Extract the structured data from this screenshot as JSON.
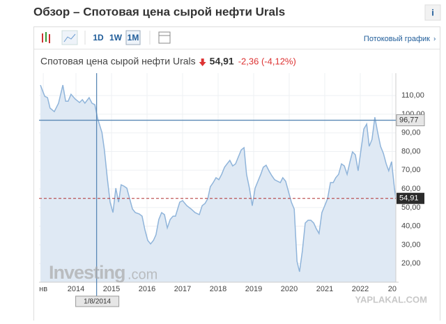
{
  "header": {
    "title": "Обзор – Спотовая цена сырой нефти Urals",
    "info_icon": "i"
  },
  "toolbar": {
    "intervals": [
      "1D",
      "1W",
      "1M"
    ],
    "active_interval": "1M",
    "stream_link": "Потоковый график"
  },
  "quote": {
    "name": "Спотовая цена сырой нефти Urals",
    "price": "54,91",
    "change": "-2,36 (-4,12%)"
  },
  "watermarks": {
    "brand": "Investing",
    "brand_suffix": ".com",
    "site": "YAPLAKAL.COM"
  },
  "chart_data": {
    "type": "area",
    "color": "#8fb4da",
    "fill": "#dfe9f4",
    "grid": true,
    "xlim": [
      2012.96,
      2023.0
    ],
    "ylim": [
      10,
      122
    ],
    "xticks": [
      {
        "value": 2013.08,
        "label": "нв"
      },
      2014,
      2015,
      2016,
      2017,
      2018,
      2019,
      2020,
      2021,
      2022,
      {
        "value": 2022.9,
        "label": "20"
      }
    ],
    "yticks": [
      {
        "value": 20,
        "label": "20,00"
      },
      {
        "value": 30,
        "label": "30,00"
      },
      {
        "value": 40,
        "label": "40,00"
      },
      {
        "value": 50,
        "label": "50,00"
      },
      {
        "value": 60,
        "label": "60,00"
      },
      {
        "value": 70,
        "label": "70,00"
      },
      {
        "value": 80,
        "label": "80,00"
      },
      {
        "value": 90,
        "label": "90,00"
      },
      {
        "value": 100,
        "label": "100,00"
      },
      {
        "value": 110,
        "label": "110,00"
      }
    ],
    "crosshair_x": {
      "value": 2014.58,
      "label": "1/8/2014"
    },
    "crosshair_y": {
      "value": 96.77,
      "label": "96,77"
    },
    "last_price_line": {
      "value": 54.91,
      "label": "54,91"
    },
    "x": [
      2013.0,
      2013.12,
      2013.2,
      2013.27,
      2013.39,
      2013.51,
      2013.63,
      2013.71,
      2013.78,
      2013.86,
      2013.98,
      2014.1,
      2014.18,
      2014.25,
      2014.37,
      2014.45,
      2014.53,
      2014.61,
      2014.73,
      2014.8,
      2014.88,
      2014.96,
      2015.04,
      2015.12,
      2015.2,
      2015.27,
      2015.35,
      2015.43,
      2015.51,
      2015.59,
      2015.67,
      2015.78,
      2015.86,
      2015.94,
      2016.02,
      2016.1,
      2016.18,
      2016.25,
      2016.33,
      2016.41,
      2016.49,
      2016.57,
      2016.65,
      2016.73,
      2016.8,
      2016.92,
      2017.0,
      2017.12,
      2017.24,
      2017.35,
      2017.47,
      2017.55,
      2017.63,
      2017.71,
      2017.78,
      2017.86,
      2017.94,
      2018.02,
      2018.1,
      2018.18,
      2018.25,
      2018.33,
      2018.41,
      2018.49,
      2018.57,
      2018.65,
      2018.73,
      2018.8,
      2018.88,
      2018.96,
      2019.04,
      2019.12,
      2019.2,
      2019.27,
      2019.35,
      2019.43,
      2019.51,
      2019.59,
      2019.67,
      2019.75,
      2019.82,
      2019.9,
      2019.98,
      2020.06,
      2020.14,
      2020.22,
      2020.29,
      2020.37,
      2020.45,
      2020.53,
      2020.61,
      2020.69,
      2020.76,
      2020.84,
      2020.92,
      2021.0,
      2021.08,
      2021.16,
      2021.24,
      2021.31,
      2021.39,
      2021.47,
      2021.55,
      2021.63,
      2021.71,
      2021.78,
      2021.86,
      2021.94,
      2022.02,
      2022.1,
      2022.18,
      2022.25,
      2022.33,
      2022.41,
      2022.49,
      2022.57,
      2022.65,
      2022.73,
      2022.8,
      2022.88,
      2022.96,
      2023.0
    ],
    "values": [
      115.6,
      109.6,
      108.9,
      103.3,
      101.4,
      105.9,
      115.6,
      107,
      107,
      110.7,
      108.1,
      106.3,
      107.8,
      105.9,
      108.9,
      105.9,
      105.1,
      97.7,
      90.2,
      80.9,
      66,
      52.9,
      47.3,
      60.4,
      52.9,
      62.2,
      61.5,
      60.4,
      54.8,
      49.2,
      47.3,
      46.6,
      45.4,
      38,
      32.4,
      30.5,
      32.4,
      35.4,
      43.6,
      47.3,
      46.2,
      39.1,
      43.6,
      45.4,
      45.4,
      52.9,
      53.7,
      51,
      49.2,
      47.3,
      46.2,
      51,
      52.2,
      54.8,
      61.1,
      63.4,
      66,
      64.9,
      67.8,
      71.6,
      73.4,
      75.3,
      72.3,
      73.4,
      77.2,
      80.9,
      82.1,
      67.8,
      60.4,
      51,
      60.4,
      64.1,
      67.8,
      71.6,
      72.7,
      69.7,
      67.1,
      64.9,
      64.1,
      63.4,
      66,
      64.1,
      58.5,
      52.9,
      49.2,
      21.2,
      15.6,
      26.8,
      41.7,
      43.2,
      43.2,
      41.7,
      38.7,
      36.1,
      47.3,
      51,
      54.8,
      63.4,
      63.4,
      66,
      67.8,
      73.4,
      72.3,
      67.8,
      74.6,
      79.8,
      78.3,
      69.7,
      80.9,
      92.1,
      94.7,
      82.8,
      86.5,
      98.4,
      90.2,
      82.8,
      79,
      73.4,
      69.7,
      74.6,
      60.4,
      54.91
    ]
  }
}
